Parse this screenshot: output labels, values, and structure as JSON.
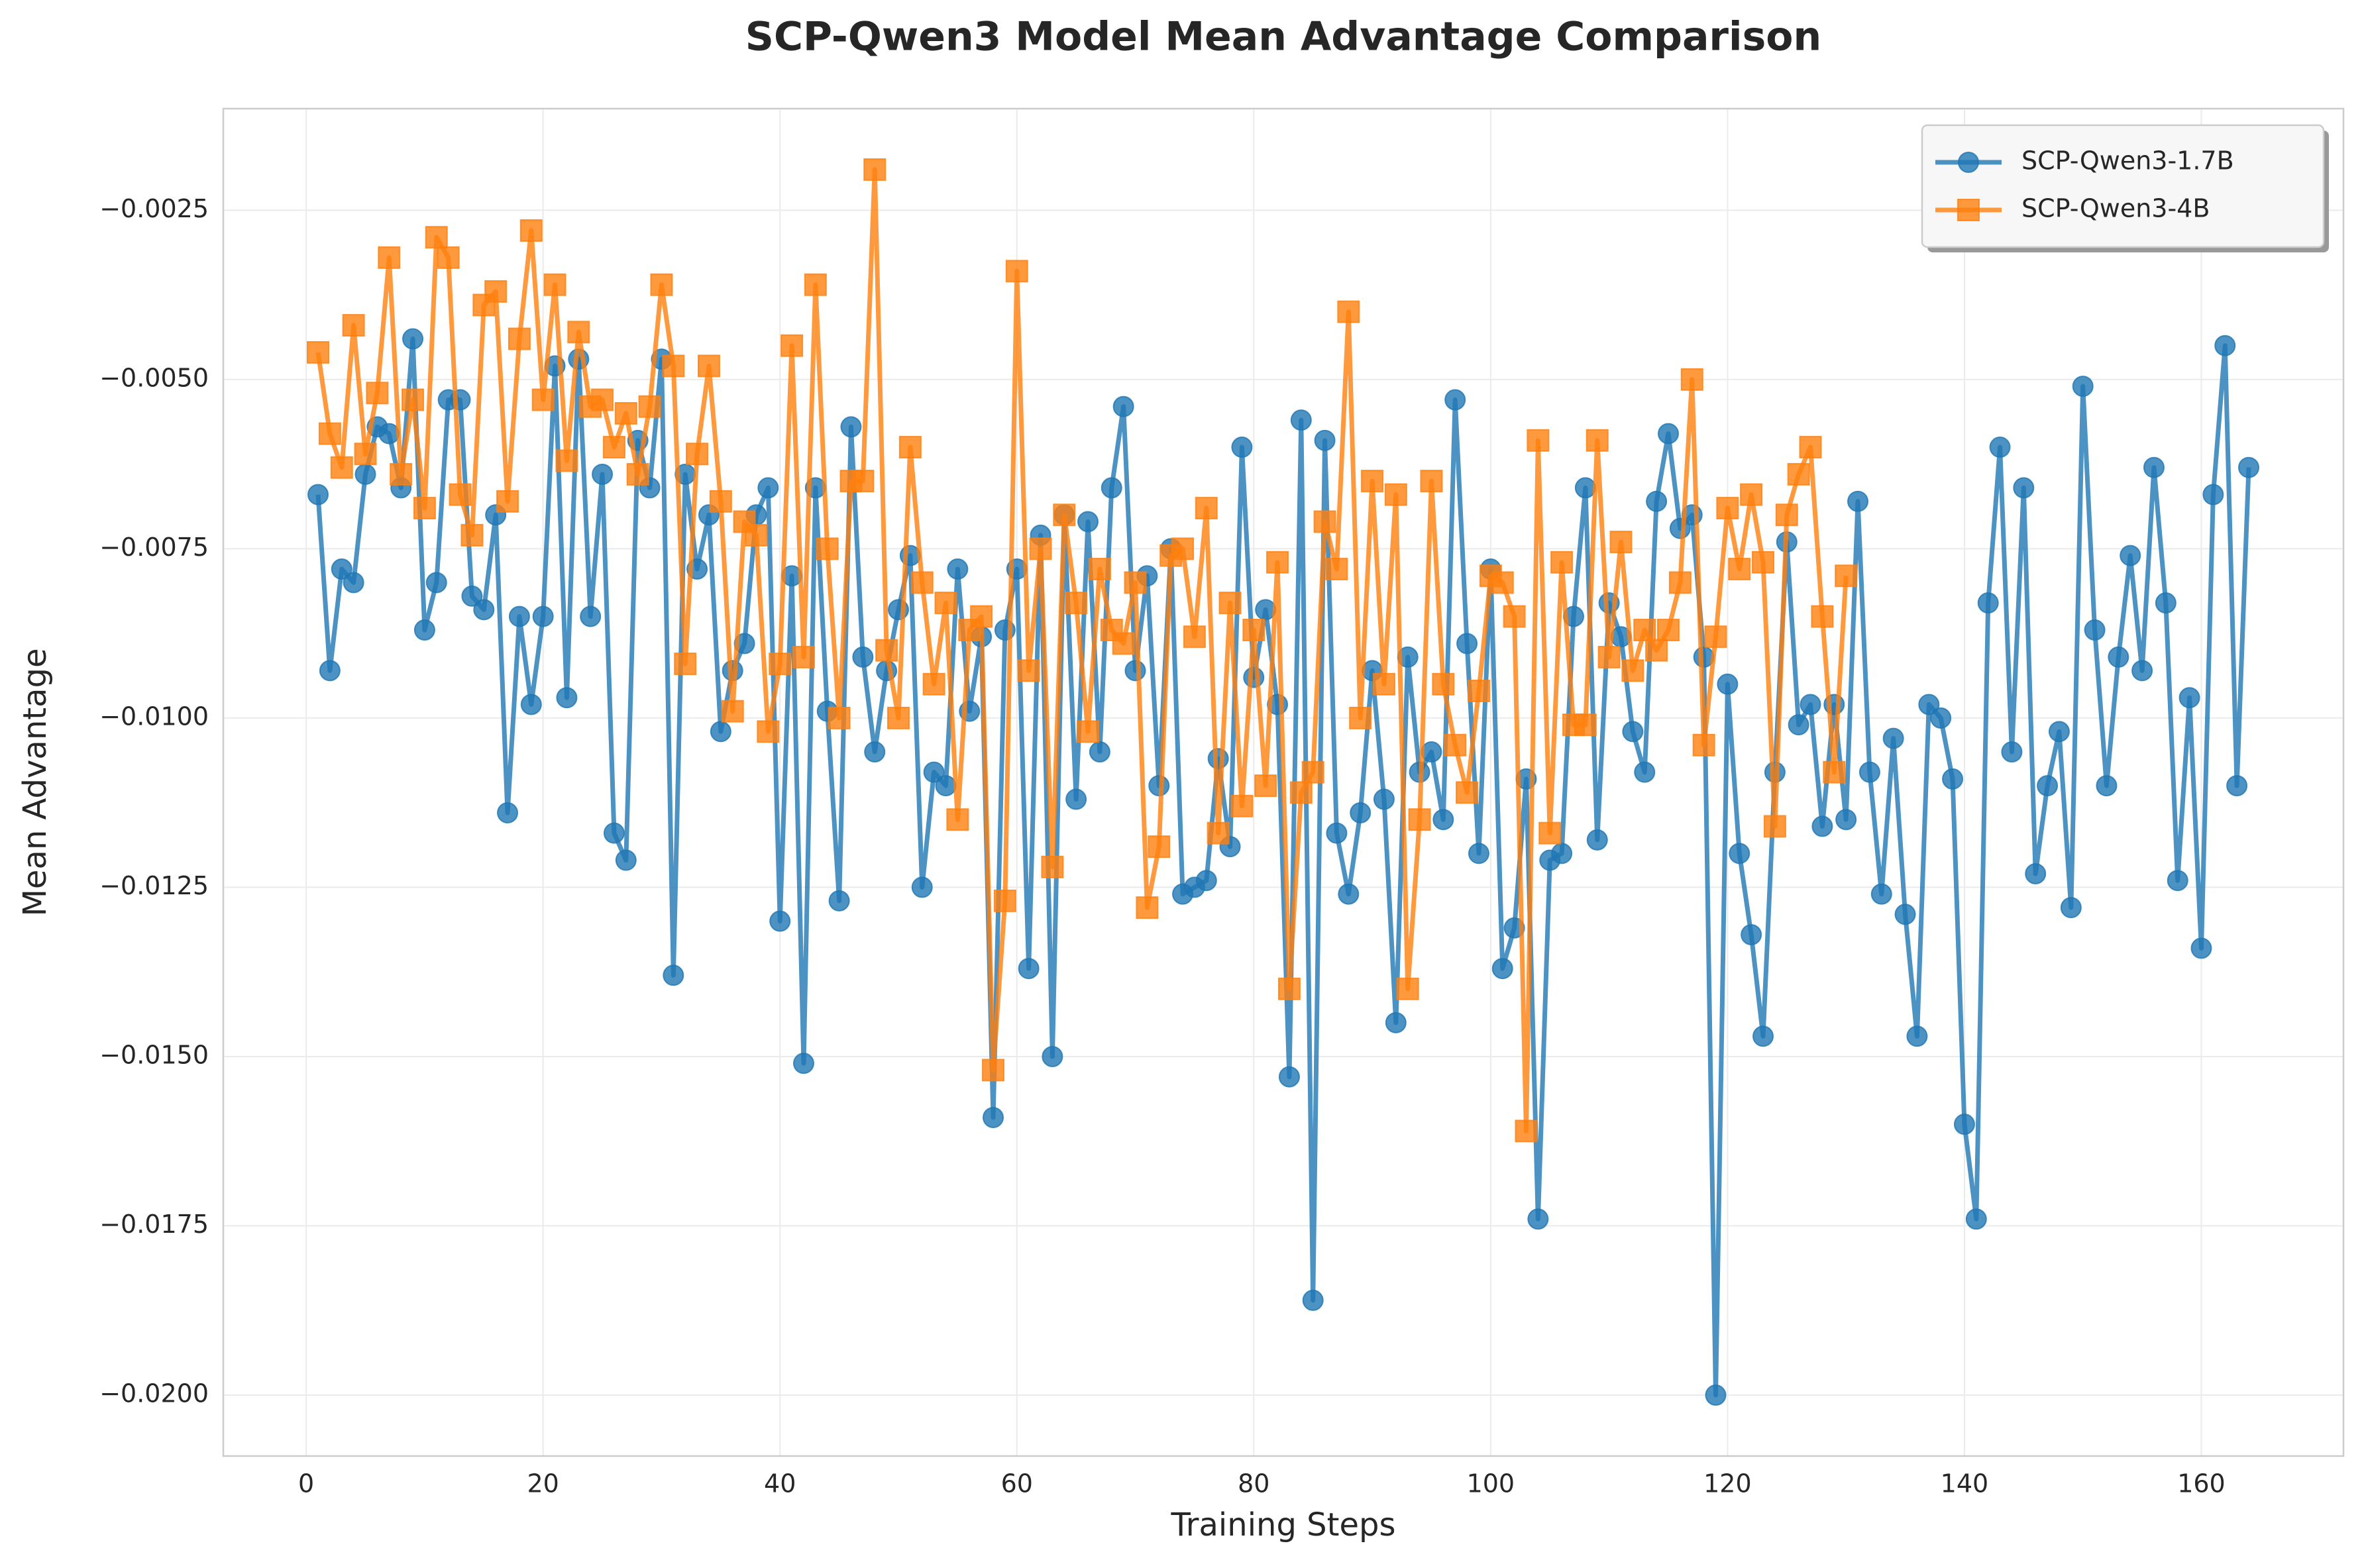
{
  "chart_data": {
    "type": "line",
    "title": "SCP-Qwen3 Model Mean Advantage Comparison",
    "x_label": "Training Steps",
    "y_label": "Mean Advantage",
    "grid": true,
    "legend_position": "upper right",
    "xlim": [
      -7,
      172
    ],
    "ylim": [
      -0.0209,
      -0.001
    ],
    "xticks": [
      0,
      20,
      40,
      60,
      80,
      100,
      120,
      140,
      160
    ],
    "yticks": [
      {
        "value": -0.0025,
        "label": "−0.0025"
      },
      {
        "value": -0.005,
        "label": "−0.0050"
      },
      {
        "value": -0.0075,
        "label": "−0.0075"
      },
      {
        "value": -0.01,
        "label": "−0.0100"
      },
      {
        "value": -0.0125,
        "label": "−0.0125"
      },
      {
        "value": -0.015,
        "label": "−0.0150"
      },
      {
        "value": -0.0175,
        "label": "−0.0175"
      },
      {
        "value": -0.02,
        "label": "−0.0200"
      }
    ],
    "x": [
      1,
      2,
      3,
      4,
      5,
      6,
      7,
      8,
      9,
      10,
      11,
      12,
      13,
      14,
      15,
      16,
      17,
      18,
      19,
      20,
      21,
      22,
      23,
      24,
      25,
      26,
      27,
      28,
      29,
      30,
      31,
      32,
      33,
      34,
      35,
      36,
      37,
      38,
      39,
      40,
      41,
      42,
      43,
      44,
      45,
      46,
      47,
      48,
      49,
      50,
      51,
      52,
      53,
      54,
      55,
      56,
      57,
      58,
      59,
      60,
      61,
      62,
      63,
      64,
      65,
      66,
      67,
      68,
      69,
      70,
      71,
      72,
      73,
      74,
      75,
      76,
      77,
      78,
      79,
      80,
      81,
      82,
      83,
      84,
      85,
      86,
      87,
      88,
      89,
      90,
      91,
      92,
      93,
      94,
      95,
      96,
      97,
      98,
      99,
      100,
      101,
      102,
      103,
      104,
      105,
      106,
      107,
      108,
      109,
      110,
      111,
      112,
      113,
      114,
      115,
      116,
      117,
      118,
      119,
      120,
      121,
      122,
      123,
      124,
      125,
      126,
      127,
      128,
      129,
      130,
      131,
      132,
      133,
      134,
      135,
      136,
      137,
      138,
      139,
      140,
      141,
      142,
      143,
      144,
      145,
      146,
      147,
      148,
      149,
      150,
      151,
      152,
      153,
      154,
      155,
      156,
      157,
      158,
      159,
      160,
      161,
      162,
      163,
      164
    ],
    "series": [
      {
        "name": "SCP-Qwen3-1.7B",
        "color": "#1f77b4",
        "marker": "circle",
        "values": [
          -0.0067,
          -0.0093,
          -0.0078,
          -0.008,
          -0.0064,
          -0.0057,
          -0.0058,
          -0.0066,
          -0.0044,
          -0.0087,
          -0.008,
          -0.0053,
          -0.0053,
          -0.0082,
          -0.0084,
          -0.007,
          -0.0114,
          -0.0085,
          -0.0098,
          -0.0085,
          -0.0048,
          -0.0097,
          -0.0047,
          -0.0085,
          -0.0064,
          -0.0117,
          -0.0121,
          -0.0059,
          -0.0066,
          -0.0047,
          -0.0138,
          -0.0064,
          -0.0078,
          -0.007,
          -0.0102,
          -0.0093,
          -0.0089,
          -0.007,
          -0.0066,
          -0.013,
          -0.0079,
          -0.0151,
          -0.0066,
          -0.0099,
          -0.0127,
          -0.0057,
          -0.0091,
          -0.0105,
          -0.0093,
          -0.0084,
          -0.0076,
          -0.0125,
          -0.0108,
          -0.011,
          -0.0078,
          -0.0099,
          -0.0088,
          -0.0159,
          -0.0087,
          -0.0078,
          -0.0137,
          -0.0073,
          -0.015,
          -0.007,
          -0.0112,
          -0.0071,
          -0.0105,
          -0.0066,
          -0.0054,
          -0.0093,
          -0.0079,
          -0.011,
          -0.0075,
          -0.0126,
          -0.0125,
          -0.0124,
          -0.0106,
          -0.0119,
          -0.006,
          -0.0094,
          -0.0084,
          -0.0098,
          -0.0153,
          -0.0056,
          -0.0186,
          -0.0059,
          -0.0117,
          -0.0126,
          -0.0114,
          -0.0093,
          -0.0112,
          -0.0145,
          -0.0091,
          -0.0108,
          -0.0105,
          -0.0115,
          -0.0053,
          -0.0089,
          -0.012,
          -0.0078,
          -0.0137,
          -0.0131,
          -0.0109,
          -0.0174,
          -0.0121,
          -0.012,
          -0.0085,
          -0.0066,
          -0.0118,
          -0.0083,
          -0.0088,
          -0.0102,
          -0.0108,
          -0.0068,
          -0.0058,
          -0.0072,
          -0.007,
          -0.0091,
          -0.02,
          -0.0095,
          -0.012,
          -0.0132,
          -0.0147,
          -0.0108,
          -0.0074,
          -0.0101,
          -0.0098,
          -0.0116,
          -0.0098,
          -0.0115,
          -0.0068,
          -0.0108,
          -0.0126,
          -0.0103,
          -0.0129,
          -0.0147,
          -0.0098,
          -0.01,
          -0.0109,
          -0.016,
          -0.0174,
          -0.0083,
          -0.006,
          -0.0105,
          -0.0066,
          -0.0123,
          -0.011,
          -0.0102,
          -0.0128,
          -0.0051,
          -0.0087,
          -0.011,
          -0.0091,
          -0.0076,
          -0.0093,
          -0.0063,
          -0.0083,
          -0.0124,
          -0.0097,
          -0.0134,
          -0.0067,
          -0.0045,
          -0.011,
          -0.0063
        ]
      },
      {
        "name": "SCP-Qwen3-4B",
        "color": "#ff7f0e",
        "marker": "square",
        "values": [
          -0.0046,
          -0.0058,
          -0.0063,
          -0.0042,
          -0.0061,
          -0.0052,
          -0.0032,
          -0.0064,
          -0.0053,
          -0.0069,
          -0.0029,
          -0.0032,
          -0.0067,
          -0.0073,
          -0.0039,
          -0.0037,
          -0.0068,
          -0.0044,
          -0.0028,
          -0.0053,
          -0.0036,
          -0.0062,
          -0.0043,
          -0.0054,
          -0.0053,
          -0.006,
          -0.0055,
          -0.0064,
          -0.0054,
          -0.0036,
          -0.0048,
          -0.0092,
          -0.0061,
          -0.0048,
          -0.0068,
          -0.0099,
          -0.0071,
          -0.0073,
          -0.0102,
          -0.0092,
          -0.0045,
          -0.0091,
          -0.0036,
          -0.0075,
          -0.01,
          -0.0065,
          -0.0065,
          -0.0019,
          -0.009,
          -0.01,
          -0.006,
          -0.008,
          -0.0095,
          -0.0083,
          -0.0115,
          -0.0087,
          -0.0085,
          -0.0152,
          -0.0127,
          -0.0034,
          -0.0093,
          -0.0075,
          -0.0122,
          -0.007,
          -0.0083,
          -0.0102,
          -0.0078,
          -0.0087,
          -0.0089,
          -0.008,
          -0.0128,
          -0.0119,
          -0.0076,
          -0.0075,
          -0.0088,
          -0.0069,
          -0.0117,
          -0.0083,
          -0.0113,
          -0.0087,
          -0.011,
          -0.0077,
          -0.014,
          -0.0111,
          -0.0108,
          -0.0071,
          -0.0078,
          -0.004,
          -0.01,
          -0.0065,
          -0.0095,
          -0.0067,
          -0.014,
          -0.0115,
          -0.0065,
          -0.0095,
          -0.0104,
          -0.0111,
          -0.0096,
          -0.0079,
          -0.008,
          -0.0085,
          -0.0161,
          -0.0059,
          -0.0117,
          -0.0077,
          -0.0101,
          -0.0101,
          -0.0059,
          -0.0091,
          -0.0074,
          -0.0093,
          -0.0087,
          -0.009,
          -0.0087,
          -0.008,
          -0.005,
          -0.0104,
          -0.0088,
          -0.0069,
          -0.0078,
          -0.0067,
          -0.0077,
          -0.0116,
          -0.007,
          -0.0064,
          -0.006,
          -0.0085,
          -0.0108,
          -0.0079,
          null,
          null,
          null,
          null,
          null,
          null,
          null,
          null,
          null,
          null,
          null,
          null,
          null,
          null,
          null,
          null,
          null,
          null,
          null,
          null,
          null,
          null,
          null,
          null,
          null,
          null,
          null,
          null,
          null,
          null,
          null,
          null,
          null,
          null
        ]
      }
    ]
  }
}
